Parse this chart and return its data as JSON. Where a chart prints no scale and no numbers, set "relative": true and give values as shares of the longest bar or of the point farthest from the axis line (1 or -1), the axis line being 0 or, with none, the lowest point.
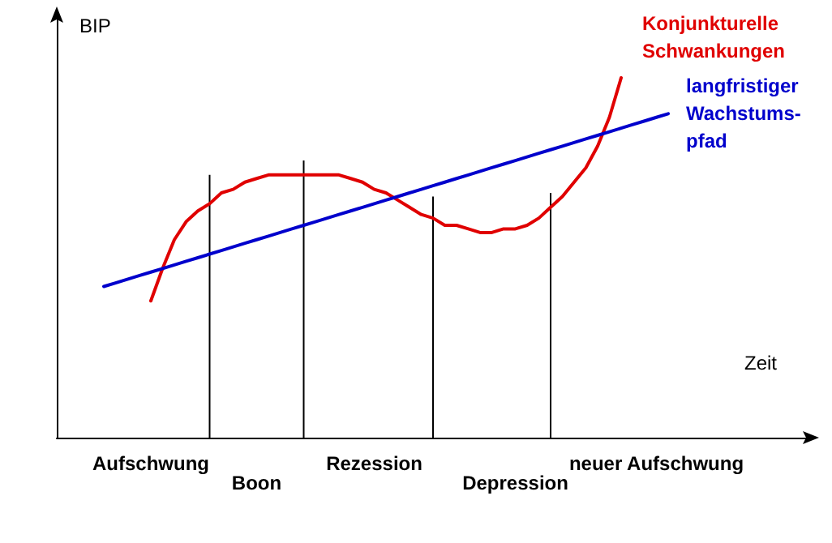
{
  "chart_data": {
    "type": "line",
    "relative": true,
    "ylabel": "BIP",
    "xlabel": "Zeit",
    "marker": "none",
    "line_style": "solid",
    "categories": [
      null,
      null,
      null,
      null,
      null,
      null,
      null,
      null,
      "Aufschwung",
      null,
      null,
      null,
      null,
      null,
      null,
      null,
      null,
      "Boon",
      null,
      null,
      null,
      null,
      null,
      null,
      null,
      null,
      null,
      "Rezession",
      null,
      null,
      null,
      null,
      null,
      null,
      null,
      null,
      null,
      null,
      null,
      "Depression",
      null,
      null,
      null,
      null,
      null,
      null,
      null,
      null,
      null,
      null,
      null,
      "neuer Aufschwung",
      null,
      null,
      null,
      null,
      null,
      null,
      null,
      null,
      null,
      null,
      null,
      null,
      null
    ],
    "series": [
      {
        "name": "Konjunkturelle Schwankungen",
        "color": "#e00000",
        "values": [
          null,
          null,
          null,
          null,
          null,
          null,
          null,
          null,
          0.38,
          0.47,
          0.55,
          0.6,
          0.63,
          0.65,
          0.68,
          0.69,
          0.71,
          0.72,
          0.73,
          0.73,
          0.73,
          0.73,
          0.73,
          0.73,
          0.73,
          0.72,
          0.71,
          0.69,
          0.68,
          0.66,
          0.64,
          0.62,
          0.61,
          0.59,
          0.59,
          0.58,
          0.57,
          0.57,
          0.58,
          0.58,
          0.59,
          0.61,
          0.64,
          0.67,
          0.71,
          0.75,
          0.81,
          0.89,
          1,
          null,
          null,
          null,
          null,
          null,
          null,
          null,
          null,
          null,
          null,
          null,
          null,
          null,
          null,
          null,
          null
        ]
      },
      {
        "name": "langfristiger Wachstums-pfad",
        "color": "#0000cc",
        "values": [
          null,
          null,
          null,
          null,
          0.42,
          0.43,
          0.44,
          0.45,
          0.46,
          0.47,
          0.48,
          0.49,
          0.5,
          0.51,
          0.52,
          0.53,
          0.54,
          0.55,
          0.56,
          0.57,
          0.58,
          0.59,
          0.6,
          0.61,
          0.62,
          0.63,
          0.64,
          0.65,
          0.66,
          0.67,
          0.68,
          0.69,
          0.7,
          0.71,
          0.72,
          0.73,
          0.74,
          0.75,
          0.76,
          0.77,
          0.78,
          0.79,
          0.8,
          0.81,
          0.82,
          0.83,
          0.84,
          0.85,
          0.86,
          0.87,
          0.88,
          0.89,
          0.9,
          null,
          null,
          null,
          null,
          null,
          null,
          null,
          null,
          null,
          null,
          null,
          null
        ]
      },
      {
        "type": "bar",
        "color": "#000000",
        "values": [
          null,
          null,
          null,
          null,
          null,
          null,
          null,
          null,
          null,
          null,
          null,
          null,
          null,
          0.73,
          null,
          null,
          null,
          null,
          null,
          null,
          null,
          0.77,
          null,
          null,
          null,
          null,
          null,
          null,
          null,
          null,
          null,
          null,
          0.67,
          null,
          null,
          null,
          null,
          null,
          null,
          null,
          null,
          null,
          0.68,
          null,
          null,
          null,
          null,
          null,
          null,
          null,
          null,
          null,
          null,
          null,
          null,
          null,
          null,
          null,
          null,
          null,
          null,
          null,
          null,
          null,
          null
        ]
      }
    ]
  }
}
